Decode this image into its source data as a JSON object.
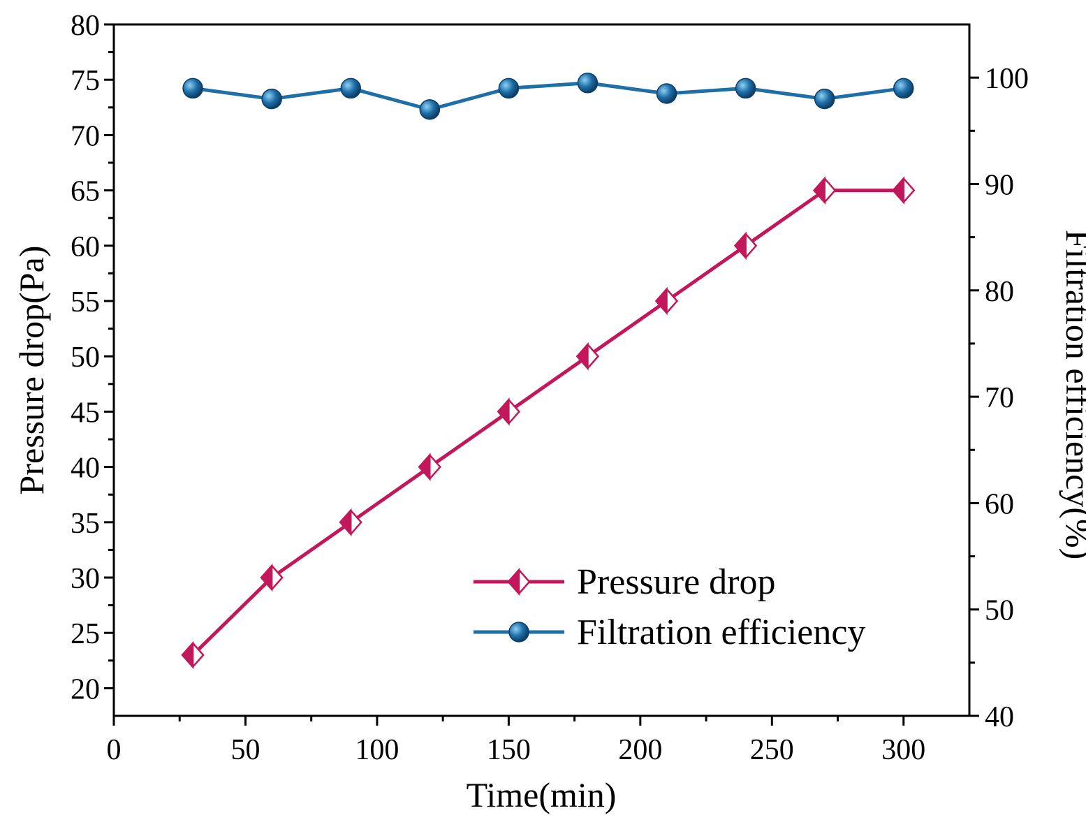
{
  "chart_data": {
    "type": "line",
    "title": "",
    "xlabel": "Time(min)",
    "ylabel": "Pressure drop(Pa)",
    "y2label": "Filtration efficiency(%)",
    "xlim": [
      0,
      325
    ],
    "ylim": [
      17.5,
      80
    ],
    "y2lim": [
      40,
      105
    ],
    "x_ticks": [
      0,
      50,
      100,
      150,
      200,
      250,
      300
    ],
    "y_ticks": [
      20,
      25,
      30,
      35,
      40,
      45,
      50,
      55,
      60,
      65,
      70,
      75,
      80
    ],
    "y2_ticks": [
      40,
      50,
      60,
      70,
      80,
      90,
      100
    ],
    "grid": false,
    "legend_position": "bottom-right",
    "x": [
      30,
      60,
      90,
      120,
      150,
      180,
      210,
      240,
      270,
      300
    ],
    "series": [
      {
        "name": "Pressure drop",
        "axis": "left",
        "color": "#c2185b",
        "marker": "half-filled-diamond",
        "values": [
          23,
          30,
          35,
          40,
          45,
          50,
          55,
          60,
          65,
          65
        ]
      },
      {
        "name": "Filtration efficiency",
        "axis": "right",
        "color": "#1e6fa8",
        "marker": "filled-circle",
        "values": [
          99,
          98,
          99,
          97,
          99,
          99.5,
          98.5,
          99,
          98,
          99
        ]
      }
    ]
  }
}
